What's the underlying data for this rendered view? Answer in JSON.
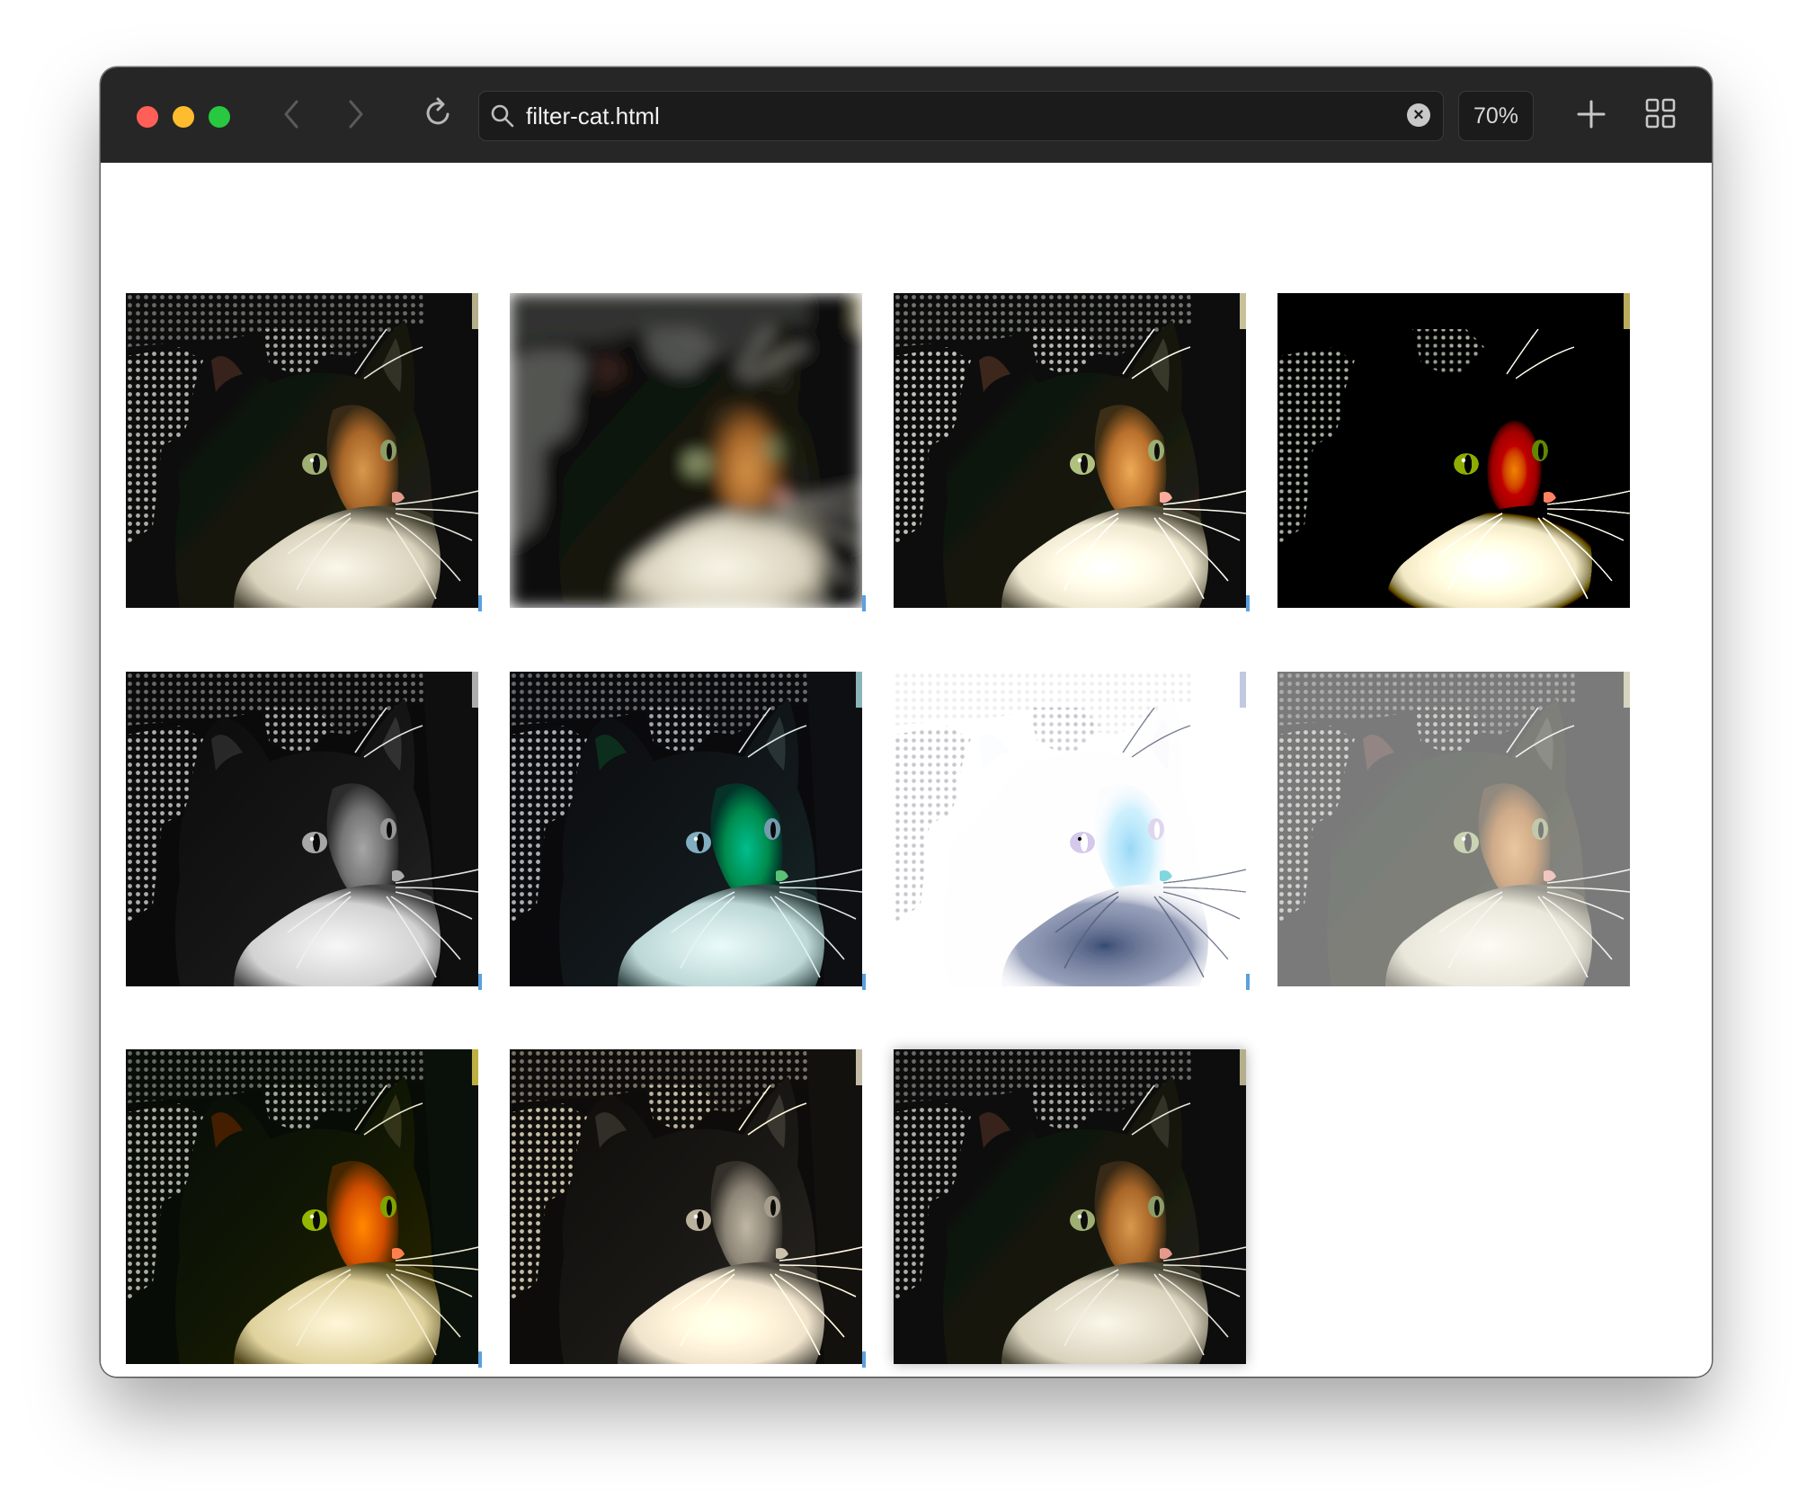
{
  "browser": {
    "url": "filter-cat.html",
    "zoom": "70%",
    "icons": {
      "close": "close-traffic-light",
      "minimize": "minimize-traffic-light",
      "maximize": "maximize-traffic-light",
      "back": "chevron-left-icon",
      "forward": "chevron-right-icon",
      "reload": "reload-icon",
      "search": "search-icon",
      "clear": "clear-icon",
      "new_tab": "plus-icon",
      "tab_overview": "grid-icon"
    }
  },
  "gallery": {
    "images": [
      {
        "filter": "none"
      },
      {
        "filter": "blur"
      },
      {
        "filter": "brightness"
      },
      {
        "filter": "contrast"
      },
      {
        "filter": "grayscale"
      },
      {
        "filter": "hue-rotate"
      },
      {
        "filter": "invert"
      },
      {
        "filter": "opacity"
      },
      {
        "filter": "saturate"
      },
      {
        "filter": "sepia"
      },
      {
        "filter": "drop-shadow"
      }
    ]
  }
}
